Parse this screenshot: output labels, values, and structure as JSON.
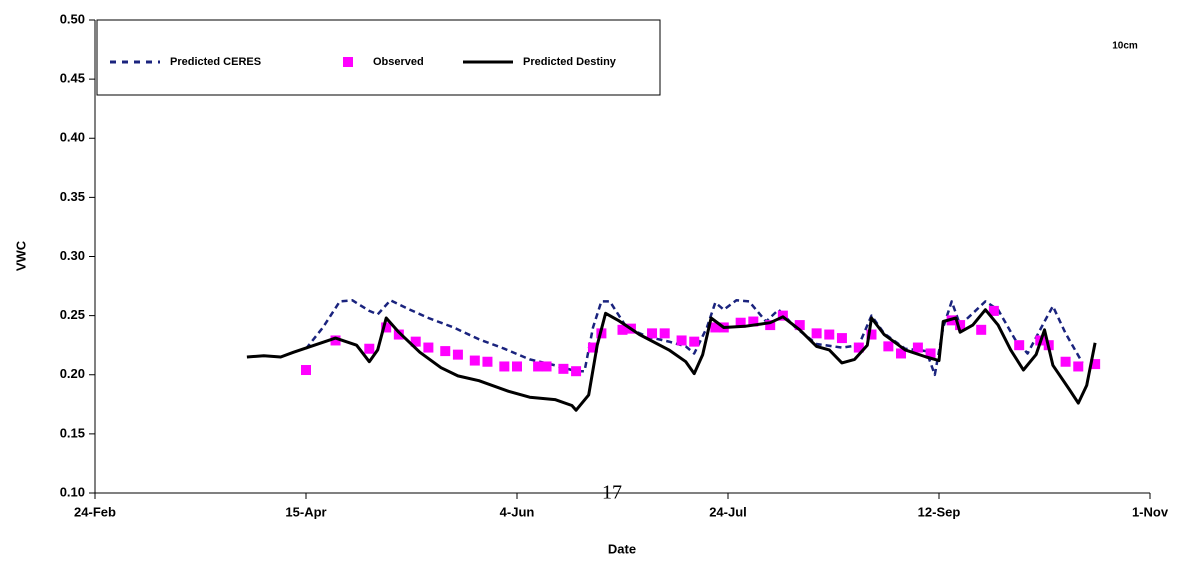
{
  "chart_data": {
    "type": "line",
    "x_label": "Date",
    "y_label": "VWC",
    "annotations": [
      "10cm",
      "17"
    ],
    "xlim": [
      "24-Feb",
      "1-Nov"
    ],
    "xticks": [
      "24-Feb",
      "15-Apr",
      "4-Jun",
      "24-Jul",
      "12-Sep",
      "1-Nov"
    ],
    "ylim": [
      0.1,
      0.5
    ],
    "yticks": [
      {
        "value": 0.1,
        "label": "0.10"
      },
      {
        "value": 0.15,
        "label": "0.15"
      },
      {
        "value": 0.2,
        "label": "0.20"
      },
      {
        "value": 0.25,
        "label": "0.25"
      },
      {
        "value": 0.3,
        "label": "0.30"
      },
      {
        "value": 0.35,
        "label": "0.35"
      },
      {
        "value": 0.4,
        "label": "0.40"
      },
      {
        "value": 0.45,
        "label": "0.45"
      },
      {
        "value": 0.5,
        "label": "0.50"
      }
    ],
    "grid": false,
    "legend": "top-left",
    "series": [
      {
        "name": "Predicted CERES",
        "color": "#1a237e",
        "style": "dashed",
        "x": [
          "15-Apr",
          "19-Apr",
          "23-Apr",
          "26-Apr",
          "30-Apr",
          "2-May",
          "5-May",
          "9-May",
          "14-May",
          "20-May",
          "26-May",
          "1-Jun",
          "7-Jun",
          "13-Jun",
          "18-Jun",
          "20-Jun",
          "22-Jun",
          "24-Jun",
          "26-Jun",
          "30-Jun",
          "5-Jul",
          "10-Jul",
          "14-Jul",
          "16-Jul",
          "19-Jul",
          "21-Jul",
          "23-Jul",
          "26-Jul",
          "29-Jul",
          "2-Aug",
          "5-Aug",
          "9-Aug",
          "14-Aug",
          "20-Aug",
          "24-Aug",
          "27-Aug",
          "30-Aug",
          "4-Sep",
          "9-Sep",
          "11-Sep",
          "13-Sep",
          "15-Sep",
          "17-Sep",
          "20-Sep",
          "23-Sep",
          "26-Sep",
          "30-Sep",
          "3-Oct",
          "7-Oct",
          "9-Oct",
          "12-Oct",
          "16-Oct"
        ],
        "values": [
          0.222,
          0.24,
          0.262,
          0.263,
          0.254,
          0.251,
          0.263,
          0.256,
          0.248,
          0.24,
          0.23,
          0.222,
          0.213,
          0.208,
          0.203,
          0.203,
          0.24,
          0.262,
          0.262,
          0.24,
          0.232,
          0.228,
          0.224,
          0.218,
          0.24,
          0.261,
          0.255,
          0.263,
          0.262,
          0.245,
          0.255,
          0.24,
          0.226,
          0.223,
          0.225,
          0.25,
          0.235,
          0.222,
          0.22,
          0.2,
          0.24,
          0.262,
          0.242,
          0.252,
          0.262,
          0.255,
          0.23,
          0.218,
          0.245,
          0.258,
          0.235,
          0.21
        ]
      },
      {
        "name": "Observed",
        "color": "#ff00ff",
        "style": "markers",
        "x": [
          "15-Apr",
          "22-Apr",
          "30-Apr",
          "4-May",
          "7-May",
          "11-May",
          "14-May",
          "18-May",
          "21-May",
          "25-May",
          "28-May",
          "1-Jun",
          "4-Jun",
          "9-Jun",
          "11-Jun",
          "15-Jun",
          "18-Jun",
          "22-Jun",
          "24-Jun",
          "29-Jun",
          "1-Jul",
          "6-Jul",
          "9-Jul",
          "13-Jul",
          "16-Jul",
          "21-Jul",
          "23-Jul",
          "27-Jul",
          "30-Jul",
          "3-Aug",
          "6-Aug",
          "10-Aug",
          "14-Aug",
          "17-Aug",
          "20-Aug",
          "24-Aug",
          "27-Aug",
          "31-Aug",
          "3-Sep",
          "7-Sep",
          "10-Sep",
          "15-Sep",
          "17-Sep",
          "22-Sep",
          "25-Sep",
          "1-Oct",
          "6-Oct",
          "8-Oct",
          "12-Oct",
          "15-Oct",
          "19-Oct"
        ],
        "values": [
          0.204,
          0.229,
          0.222,
          0.24,
          0.234,
          0.228,
          0.223,
          0.22,
          0.217,
          0.212,
          0.211,
          0.207,
          0.207,
          0.207,
          0.207,
          0.205,
          0.203,
          0.223,
          0.235,
          0.238,
          0.239,
          0.235,
          0.235,
          0.229,
          0.228,
          0.24,
          0.24,
          0.244,
          0.245,
          0.242,
          0.25,
          0.242,
          0.235,
          0.234,
          0.231,
          0.223,
          0.234,
          0.224,
          0.218,
          0.223,
          0.218,
          0.246,
          0.242,
          0.238,
          0.254,
          0.225,
          0.229,
          0.225,
          0.211,
          0.207,
          0.209
        ]
      },
      {
        "name": "Predicted Destiny",
        "color": "#000000",
        "style": "solid",
        "x": [
          "1-Apr",
          "5-Apr",
          "9-Apr",
          "12-Apr",
          "17-Apr",
          "22-Apr",
          "27-Apr",
          "30-Apr",
          "2-May",
          "4-May",
          "7-May",
          "12-May",
          "17-May",
          "21-May",
          "26-May",
          "2-Jun",
          "7-Jun",
          "13-Jun",
          "17-Jun",
          "18-Jun",
          "21-Jun",
          "23-Jun",
          "25-Jun",
          "28-Jun",
          "3-Jul",
          "10-Jul",
          "14-Jul",
          "16-Jul",
          "18-Jul",
          "20-Jul",
          "23-Jul",
          "28-Jul",
          "3-Aug",
          "6-Aug",
          "10-Aug",
          "14-Aug",
          "17-Aug",
          "20-Aug",
          "23-Aug",
          "26-Aug",
          "27-Aug",
          "30-Aug",
          "4-Sep",
          "9-Sep",
          "12-Sep",
          "13-Sep",
          "16-Sep",
          "17-Sep",
          "20-Sep",
          "23-Sep",
          "26-Sep",
          "29-Sep",
          "2-Oct",
          "5-Oct",
          "7-Oct",
          "9-Oct",
          "13-Oct",
          "15-Oct",
          "17-Oct",
          "19-Oct"
        ],
        "values": [
          0.215,
          0.216,
          0.215,
          0.219,
          0.225,
          0.231,
          0.225,
          0.211,
          0.221,
          0.248,
          0.236,
          0.219,
          0.206,
          0.199,
          0.195,
          0.186,
          0.181,
          0.179,
          0.174,
          0.17,
          0.183,
          0.225,
          0.252,
          0.246,
          0.234,
          0.221,
          0.211,
          0.201,
          0.217,
          0.248,
          0.24,
          0.241,
          0.244,
          0.249,
          0.238,
          0.224,
          0.221,
          0.21,
          0.213,
          0.225,
          0.248,
          0.234,
          0.221,
          0.215,
          0.212,
          0.245,
          0.248,
          0.236,
          0.242,
          0.255,
          0.242,
          0.221,
          0.204,
          0.217,
          0.238,
          0.208,
          0.187,
          0.176,
          0.191,
          0.227
        ]
      }
    ]
  }
}
